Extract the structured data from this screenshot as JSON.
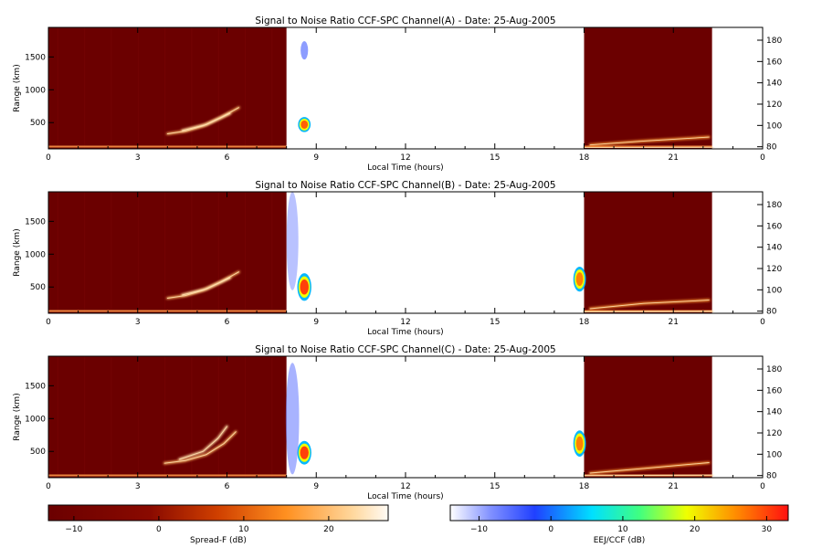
{
  "colors": {
    "background": "#ffffff",
    "spread_f_base": "#6b0000",
    "spread_f_bright": "#ffb060",
    "eej_low": "#5a6cff",
    "eej_high": "#ff2010"
  },
  "chart_data": [
    {
      "type": "heatmap",
      "title": "Signal to Noise Ratio CCF-SPC Channel(A) - Date: 25-Aug-2005",
      "xlabel": "Local Time (hours)",
      "ylabel": "Range (km)",
      "xlim": [
        0,
        24
      ],
      "ylim": [
        100,
        1950
      ],
      "y2lim": [
        78,
        192
      ],
      "xticks": [
        "0",
        "3",
        "6",
        "9",
        "12",
        "15",
        "18",
        "21",
        "0"
      ],
      "yticks": [
        {
          "v": 500,
          "label": "500"
        },
        {
          "v": 1000,
          "label": "1000"
        },
        {
          "v": 1500,
          "label": "1500"
        }
      ],
      "y2ticks": [
        {
          "v": 80,
          "label": "80"
        },
        {
          "v": 100,
          "label": "100"
        },
        {
          "v": 120,
          "label": "120"
        },
        {
          "v": 140,
          "label": "140"
        },
        {
          "v": 160,
          "label": "160"
        },
        {
          "v": 180,
          "label": "180"
        }
      ],
      "spread_f_blocks": [
        {
          "x0": 0,
          "x1": 8.0
        },
        {
          "x0": 18.0,
          "x1": 22.3
        }
      ],
      "traces": [
        {
          "points": [
            [
              4.0,
              330
            ],
            [
              4.6,
              370
            ],
            [
              5.2,
              450
            ],
            [
              5.8,
              580
            ],
            [
              6.4,
              730
            ]
          ],
          "snr": 18
        },
        {
          "points": [
            [
              4.5,
              380
            ],
            [
              5.3,
              470
            ],
            [
              6.1,
              640
            ]
          ],
          "snr": 22
        },
        {
          "points": [
            [
              18.2,
              160
            ],
            [
              20.0,
              220
            ],
            [
              22.2,
              280
            ]
          ],
          "snr": 15
        },
        {
          "points": [
            [
              18.0,
              120
            ],
            [
              22.3,
              125
            ]
          ],
          "snr": 20
        }
      ],
      "eej_blobs": [
        {
          "x": 8.6,
          "y": 470,
          "w": 0.3,
          "h": 230,
          "snr": 28
        },
        {
          "x": 8.6,
          "y": 1600,
          "w": 0.25,
          "h": 280,
          "snr": -3
        }
      ]
    },
    {
      "type": "heatmap",
      "title": "Signal to Noise Ratio CCF-SPC Channel(B) - Date: 25-Aug-2005",
      "xlabel": "Local Time (hours)",
      "ylabel": "Range (km)",
      "xlim": [
        0,
        24
      ],
      "ylim": [
        100,
        1950
      ],
      "y2lim": [
        78,
        192
      ],
      "xticks": [
        "0",
        "3",
        "6",
        "9",
        "12",
        "15",
        "18",
        "21",
        "0"
      ],
      "yticks": [
        {
          "v": 500,
          "label": "500"
        },
        {
          "v": 1000,
          "label": "1000"
        },
        {
          "v": 1500,
          "label": "1500"
        }
      ],
      "y2ticks": [
        {
          "v": 80,
          "label": "80"
        },
        {
          "v": 100,
          "label": "100"
        },
        {
          "v": 120,
          "label": "120"
        },
        {
          "v": 140,
          "label": "140"
        },
        {
          "v": 160,
          "label": "160"
        },
        {
          "v": 180,
          "label": "180"
        }
      ],
      "spread_f_blocks": [
        {
          "x0": 0,
          "x1": 8.0
        },
        {
          "x0": 18.0,
          "x1": 22.3
        }
      ],
      "traces": [
        {
          "points": [
            [
              4.0,
              330
            ],
            [
              4.6,
              370
            ],
            [
              5.2,
              450
            ],
            [
              5.8,
              580
            ],
            [
              6.4,
              730
            ]
          ],
          "snr": 18
        },
        {
          "points": [
            [
              4.5,
              380
            ],
            [
              5.3,
              470
            ],
            [
              6.1,
              640
            ]
          ],
          "snr": 22
        },
        {
          "points": [
            [
              18.2,
              170
            ],
            [
              20.0,
              250
            ],
            [
              22.2,
              300
            ]
          ],
          "snr": 15
        },
        {
          "points": [
            [
              18.0,
              120
            ],
            [
              22.3,
              130
            ]
          ],
          "snr": 20
        }
      ],
      "eej_blobs": [
        {
          "x": 8.6,
          "y": 500,
          "w": 0.35,
          "h": 420,
          "snr": 30
        },
        {
          "x": 17.85,
          "y": 620,
          "w": 0.3,
          "h": 380,
          "snr": 26
        },
        {
          "x": 8.2,
          "y": 1200,
          "w": 0.4,
          "h": 1500,
          "snr": -8
        }
      ]
    },
    {
      "type": "heatmap",
      "title": "Signal to Noise Ratio CCF-SPC Channel(C) - Date: 25-Aug-2005",
      "xlabel": "Local Time (hours)",
      "ylabel": "Range (km)",
      "xlim": [
        0,
        24
      ],
      "ylim": [
        100,
        1950
      ],
      "y2lim": [
        78,
        192
      ],
      "xticks": [
        "0",
        "3",
        "6",
        "9",
        "12",
        "15",
        "18",
        "21",
        "0"
      ],
      "yticks": [
        {
          "v": 500,
          "label": "500"
        },
        {
          "v": 1000,
          "label": "1000"
        },
        {
          "v": 1500,
          "label": "1500"
        }
      ],
      "y2ticks": [
        {
          "v": 80,
          "label": "80"
        },
        {
          "v": 100,
          "label": "100"
        },
        {
          "v": 120,
          "label": "120"
        },
        {
          "v": 140,
          "label": "140"
        },
        {
          "v": 160,
          "label": "160"
        },
        {
          "v": 180,
          "label": "180"
        }
      ],
      "spread_f_blocks": [
        {
          "x0": 0,
          "x1": 8.0
        },
        {
          "x0": 18.0,
          "x1": 22.3
        }
      ],
      "traces": [
        {
          "points": [
            [
              3.9,
              320
            ],
            [
              4.6,
              360
            ],
            [
              5.3,
              450
            ],
            [
              5.9,
              620
            ],
            [
              6.3,
              800
            ]
          ],
          "snr": 18
        },
        {
          "points": [
            [
              4.4,
              380
            ],
            [
              5.2,
              500
            ],
            [
              5.7,
              700
            ],
            [
              6.0,
              880
            ]
          ],
          "snr": 22
        },
        {
          "points": [
            [
              18.2,
              170
            ],
            [
              20.0,
              240
            ],
            [
              22.2,
              330
            ]
          ],
          "snr": 15
        },
        {
          "points": [
            [
              18.0,
              130
            ],
            [
              22.3,
              140
            ]
          ],
          "snr": 20
        }
      ],
      "eej_blobs": [
        {
          "x": 8.6,
          "y": 480,
          "w": 0.35,
          "h": 360,
          "snr": 30
        },
        {
          "x": 17.85,
          "y": 620,
          "w": 0.3,
          "h": 400,
          "snr": 26
        },
        {
          "x": 8.2,
          "y": 1000,
          "w": 0.45,
          "h": 1700,
          "snr": -6
        }
      ]
    }
  ],
  "colorbars": [
    {
      "label": "Spread-F (dB)",
      "range": [
        -13,
        27
      ],
      "ticks": [
        {
          "v": -10,
          "label": "−10"
        },
        {
          "v": 0,
          "label": "0"
        },
        {
          "v": 10,
          "label": "10"
        },
        {
          "v": 20,
          "label": "20"
        }
      ]
    },
    {
      "label": "EEJ/CCF (dB)",
      "range": [
        -14,
        33
      ],
      "ticks": [
        {
          "v": -10,
          "label": "−10"
        },
        {
          "v": 0,
          "label": "0"
        },
        {
          "v": 10,
          "label": "10"
        },
        {
          "v": 20,
          "label": "20"
        },
        {
          "v": 30,
          "label": "30"
        }
      ]
    }
  ]
}
